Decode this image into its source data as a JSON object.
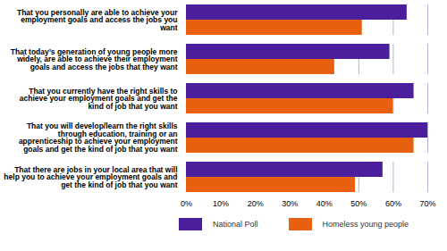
{
  "chart_data": {
    "type": "bar",
    "orientation": "horizontal",
    "categories": [
      "That you personally are able to achieve your employment goals and access the jobs you want",
      "That today’s generation of young people more widely, are able to achieve their employment goals and access the jobs that they want",
      "That you currently have the right skills to achieve your employment goals and get the kind of job that you want",
      "That you will develop/learn the right skills through education, training or an apprenticeship to achieve your employment goals and get the kind of job that you want",
      "That there are jobs in your local area that will help you to achieve your employment goals and get the kind of job that you want"
    ],
    "series": [
      {
        "name": "National Poll",
        "color": "#4b1e9e",
        "values": [
          64,
          59,
          66,
          70,
          57
        ]
      },
      {
        "name": "Homeless young people",
        "color": "#e8600f",
        "values": [
          51,
          43,
          60,
          66,
          49
        ]
      }
    ],
    "xlim": [
      0,
      70
    ],
    "xticks": [
      {
        "value": 0,
        "label": "0%"
      },
      {
        "value": 10,
        "label": "10%"
      },
      {
        "value": 20,
        "label": "20%"
      },
      {
        "value": 30,
        "label": "30%"
      },
      {
        "value": 40,
        "label": "40%"
      },
      {
        "value": 50,
        "label": "50%"
      },
      {
        "value": 60,
        "label": "60%"
      },
      {
        "value": 70,
        "label": "70%"
      }
    ],
    "grid": true,
    "legend": "bottom"
  }
}
